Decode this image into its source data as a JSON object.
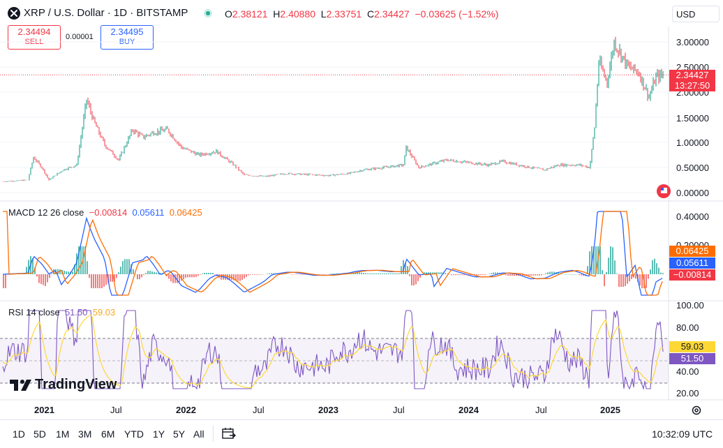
{
  "header": {
    "symbol_title": "XRP / U.S. Dollar · 1D · BITSTAMP",
    "ohlc": [
      {
        "key": "O",
        "value": "2.38121"
      },
      {
        "key": "H",
        "value": "2.40880"
      },
      {
        "key": "L",
        "value": "2.33751"
      },
      {
        "key": "C",
        "value": "2.34427"
      }
    ],
    "change": "−0.03625 (−1.52%)",
    "currency": "USD"
  },
  "trade": {
    "sell_price": "2.34494",
    "sell_label": "SELL",
    "spread": "0.00001",
    "buy_price": "2.34495",
    "buy_label": "BUY"
  },
  "price_axis": {
    "ticks": [
      "3.00000",
      "2.50000",
      "2.00000",
      "1.50000",
      "1.00000",
      "0.50000",
      "0.00000"
    ],
    "last_price": "2.34427",
    "countdown": "13:27:50"
  },
  "macd": {
    "label": "MACD 12 26 close",
    "hist": "−0.00814",
    "macd": "0.05611",
    "signal": "0.06425",
    "ticks": [
      "0.40000",
      "0.20000"
    ],
    "tag_signal": "0.06425",
    "tag_macd": "0.05611",
    "tag_hist": "−0.00814"
  },
  "rsi": {
    "label": "RSI 14 close",
    "rsi": "51.50",
    "ma": "59.03",
    "ticks": [
      "100.00",
      "80.00",
      "40.00",
      "20.00"
    ],
    "tag_ma": "59.03",
    "tag_rsi": "51.50"
  },
  "time_axis": [
    "2021",
    "Jul",
    "2022",
    "Jul",
    "2023",
    "Jul",
    "2024",
    "Jul",
    "2025"
  ],
  "watermark": "TradingView",
  "bottom": {
    "ranges": [
      "1D",
      "5D",
      "1M",
      "3M",
      "6M",
      "YTD",
      "1Y",
      "5Y",
      "All"
    ],
    "clock": "10:32:09 UTC"
  },
  "colors": {
    "up": "#089981",
    "down": "#f23645",
    "macd_line": "#2962ff",
    "signal_line": "#ff6d00",
    "rsi_line": "#7e57c2",
    "rsi_ma": "#fdd835"
  },
  "icons": [
    "xrp-logo-icon",
    "market-open-dot-icon",
    "date-range-icon",
    "settings-icon",
    "flag-icon"
  ]
}
